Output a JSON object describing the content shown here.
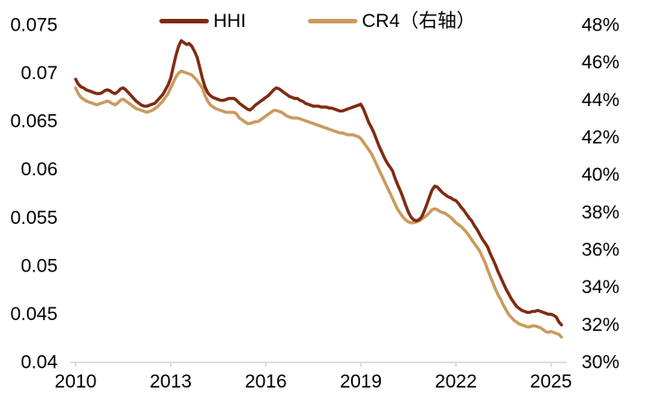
{
  "legend": {
    "hhi_label": "HHI",
    "cr4_label": "CR4（右轴）"
  },
  "chart_data": {
    "type": "line",
    "title": "",
    "xlabel": "",
    "ylabel_left": "",
    "ylabel_right": "",
    "grid": false,
    "legend_position": "top-center",
    "axis_color": "#D6D6D6",
    "x_axis": {
      "tick_labels": [
        "2010",
        "2013",
        "2016",
        "2019",
        "2022",
        "2025"
      ],
      "tick_years": [
        2010,
        2013,
        2016,
        2019,
        2022,
        2025
      ],
      "range": [
        2010,
        2025.4
      ]
    },
    "y_axis_left": {
      "tick_labels": [
        "0.075",
        "0.07",
        "0.065",
        "0.06",
        "0.055",
        "0.05",
        "0.045",
        "0.04"
      ],
      "min": 0.04,
      "max": 0.075
    },
    "y_axis_right": {
      "tick_labels": [
        "48%",
        "46%",
        "44%",
        "42%",
        "40%",
        "38%",
        "36%",
        "34%",
        "32%",
        "30%"
      ],
      "min": 30,
      "max": 48
    },
    "start_year": 2010,
    "points_per_year": 12,
    "series": [
      {
        "name": "CR4（右轴）",
        "axis": "right",
        "color": "#CA9A5E",
        "values": [
          44.6,
          44.3,
          44.1,
          44.0,
          43.9,
          43.85,
          43.8,
          43.75,
          43.7,
          43.75,
          43.8,
          43.85,
          43.9,
          43.85,
          43.75,
          43.7,
          43.8,
          43.95,
          44.0,
          43.9,
          43.8,
          43.7,
          43.6,
          43.5,
          43.45,
          43.4,
          43.35,
          43.3,
          43.35,
          43.4,
          43.5,
          43.6,
          43.75,
          43.9,
          44.1,
          44.3,
          44.6,
          44.9,
          45.2,
          45.4,
          45.5,
          45.45,
          45.4,
          45.35,
          45.3,
          45.15,
          45.0,
          44.8,
          44.6,
          44.2,
          43.9,
          43.7,
          43.6,
          43.5,
          43.45,
          43.4,
          43.35,
          43.3,
          43.3,
          43.3,
          43.3,
          43.2,
          43.0,
          42.9,
          42.8,
          42.7,
          42.7,
          42.75,
          42.8,
          42.8,
          42.9,
          43.0,
          43.1,
          43.2,
          43.3,
          43.4,
          43.4,
          43.35,
          43.3,
          43.2,
          43.1,
          43.05,
          43.0,
          43.0,
          43.0,
          42.95,
          42.9,
          42.85,
          42.8,
          42.75,
          42.7,
          42.65,
          42.6,
          42.55,
          42.5,
          42.45,
          42.4,
          42.35,
          42.3,
          42.25,
          42.2,
          42.2,
          42.15,
          42.1,
          42.1,
          42.1,
          42.05,
          42.0,
          41.9,
          41.7,
          41.5,
          41.3,
          41.1,
          40.8,
          40.5,
          40.2,
          39.9,
          39.6,
          39.3,
          39.0,
          38.7,
          38.4,
          38.1,
          37.9,
          37.7,
          37.55,
          37.45,
          37.4,
          37.4,
          37.45,
          37.5,
          37.6,
          37.7,
          37.8,
          37.95,
          38.1,
          38.15,
          38.1,
          38.0,
          37.95,
          37.9,
          37.8,
          37.7,
          37.55,
          37.4,
          37.3,
          37.2,
          37.05,
          36.9,
          36.7,
          36.5,
          36.3,
          36.1,
          35.9,
          35.6,
          35.3,
          34.9,
          34.55,
          34.2,
          33.85,
          33.55,
          33.3,
          33.0,
          32.75,
          32.5,
          32.35,
          32.2,
          32.1,
          32.0,
          31.95,
          31.9,
          31.85,
          31.85,
          31.9,
          31.9,
          31.85,
          31.8,
          31.7,
          31.6,
          31.55,
          31.6,
          31.55,
          31.5,
          31.45,
          31.3
        ]
      },
      {
        "name": "HHI",
        "axis": "left",
        "color": "#7E2B11",
        "values": [
          0.0693,
          0.0688,
          0.0685,
          0.0684,
          0.0682,
          0.0681,
          0.068,
          0.0679,
          0.0678,
          0.0678,
          0.0679,
          0.0681,
          0.0682,
          0.0681,
          0.0679,
          0.0678,
          0.068,
          0.0683,
          0.0684,
          0.0682,
          0.0679,
          0.0676,
          0.0673,
          0.067,
          0.0668,
          0.0666,
          0.0665,
          0.0665,
          0.0666,
          0.0667,
          0.0668,
          0.0671,
          0.0674,
          0.0677,
          0.0682,
          0.0687,
          0.0694,
          0.0706,
          0.0718,
          0.0727,
          0.0733,
          0.0731,
          0.0729,
          0.073,
          0.0727,
          0.0722,
          0.0716,
          0.0705,
          0.0694,
          0.0685,
          0.0679,
          0.0676,
          0.0674,
          0.0673,
          0.0672,
          0.0671,
          0.0671,
          0.0672,
          0.0673,
          0.0673,
          0.0673,
          0.0671,
          0.0668,
          0.0666,
          0.0664,
          0.0662,
          0.0661,
          0.0663,
          0.0666,
          0.0668,
          0.067,
          0.0672,
          0.0674,
          0.0676,
          0.0679,
          0.0682,
          0.0684,
          0.0683,
          0.0681,
          0.0679,
          0.0677,
          0.0675,
          0.0674,
          0.0673,
          0.0673,
          0.0671,
          0.067,
          0.0668,
          0.0667,
          0.0666,
          0.0665,
          0.0665,
          0.0665,
          0.0664,
          0.0664,
          0.0664,
          0.0663,
          0.0663,
          0.0662,
          0.0661,
          0.066,
          0.066,
          0.0661,
          0.0662,
          0.0663,
          0.0664,
          0.0665,
          0.0666,
          0.0667,
          0.0662,
          0.0655,
          0.0648,
          0.0643,
          0.0637,
          0.063,
          0.0623,
          0.0617,
          0.0611,
          0.0606,
          0.0602,
          0.0598,
          0.059,
          0.0583,
          0.0577,
          0.057,
          0.0562,
          0.0555,
          0.055,
          0.0547,
          0.0546,
          0.0547,
          0.055,
          0.0556,
          0.0563,
          0.0571,
          0.0578,
          0.0582,
          0.0581,
          0.0578,
          0.0575,
          0.0573,
          0.0571,
          0.057,
          0.0568,
          0.0567,
          0.0564,
          0.056,
          0.0557,
          0.0553,
          0.0549,
          0.0546,
          0.0541,
          0.0537,
          0.0532,
          0.0527,
          0.0523,
          0.0519,
          0.0512,
          0.0506,
          0.05,
          0.0493,
          0.0487,
          0.0481,
          0.0475,
          0.047,
          0.0465,
          0.0461,
          0.0457,
          0.0455,
          0.0453,
          0.0452,
          0.0451,
          0.0451,
          0.0452,
          0.0452,
          0.0453,
          0.0452,
          0.0451,
          0.045,
          0.0449,
          0.0449,
          0.0448,
          0.0446,
          0.0441,
          0.0438
        ]
      }
    ]
  }
}
